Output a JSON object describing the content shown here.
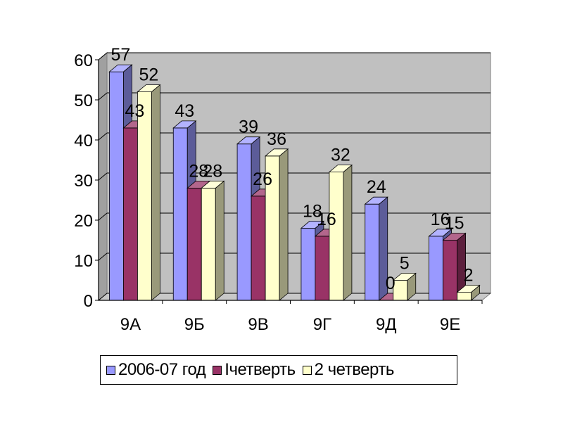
{
  "chart_data": {
    "type": "bar",
    "style": "3d-clustered-column",
    "title": "",
    "xlabel": "",
    "ylabel": "",
    "ylim": [
      0,
      60
    ],
    "yticks": [
      "0",
      "10",
      "20",
      "30",
      "40",
      "50",
      "60"
    ],
    "categories": [
      "9А",
      "9Б",
      "9В",
      "9Г",
      "9Д",
      "9Е"
    ],
    "series": [
      {
        "name": "2006-07 год",
        "color": "#9999FF",
        "values": [
          57,
          43,
          39,
          18,
          24,
          16
        ],
        "labels": [
          "57",
          "43",
          "39",
          "18",
          "24",
          "16"
        ]
      },
      {
        "name": "Iчетверть",
        "color": "#993366",
        "values": [
          43,
          28,
          26,
          16,
          0,
          15
        ],
        "labels": [
          "43",
          "28",
          "26",
          "16",
          "0",
          "15"
        ]
      },
      {
        "name": "2 четверть",
        "color": "#FFFFCC",
        "values": [
          52,
          28,
          36,
          32,
          5,
          2
        ],
        "labels": [
          "52",
          "28",
          "36",
          "32",
          "5",
          "2"
        ]
      }
    ],
    "grid": true,
    "legend": "bottom",
    "plot_background": "#C0C0C0"
  }
}
